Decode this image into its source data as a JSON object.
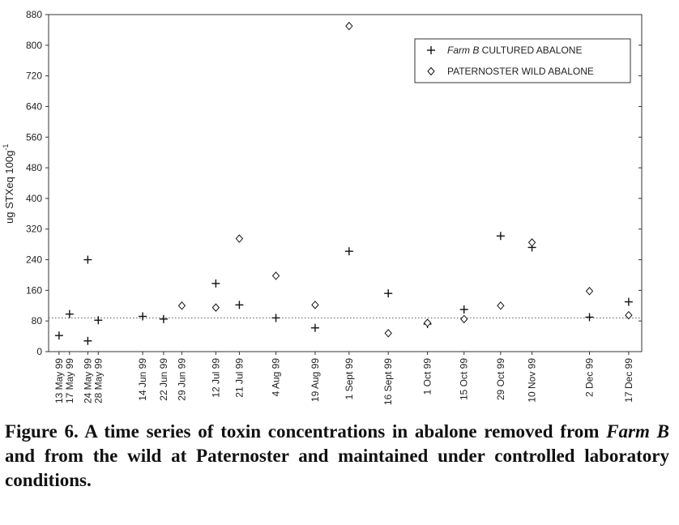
{
  "chart_data": {
    "type": "scatter",
    "ylabel": "ug STXeq 100g",
    "ylabel_superscript": "-1",
    "ylim": [
      0,
      880
    ],
    "yticks": [
      0,
      80,
      160,
      240,
      320,
      400,
      480,
      560,
      640,
      720,
      800,
      880
    ],
    "reference_line": {
      "y": 88,
      "style": "dotted"
    },
    "legend_position": "top-right",
    "series": [
      {
        "name": "CULTURED ABALONE",
        "name_prefix": "Farm B",
        "marker": "plus",
        "points": [
          {
            "x": "13 May 99",
            "y": 42
          },
          {
            "x": "17 May 99",
            "y": 98
          },
          {
            "x": "24 May 99",
            "y": 28
          },
          {
            "x": "24 May 99",
            "y": 240
          },
          {
            "x": "28 May 99",
            "y": 82
          },
          {
            "x": "14 Jun 99",
            "y": 92
          },
          {
            "x": "22 Jun 99",
            "y": 85
          },
          {
            "x": "12 Jul 99",
            "y": 178
          },
          {
            "x": "21 Jul 99",
            "y": 122
          },
          {
            "x": "4 Aug 99",
            "y": 88
          },
          {
            "x": "19 Aug 99",
            "y": 62
          },
          {
            "x": "1 Sept 99",
            "y": 262
          },
          {
            "x": "16 Sept 99",
            "y": 152
          },
          {
            "x": "1 Oct 99",
            "y": 72
          },
          {
            "x": "15 Oct 99",
            "y": 110
          },
          {
            "x": "29 Oct 99",
            "y": 302
          },
          {
            "x": "10 Nov 99",
            "y": 272
          },
          {
            "x": "2 Dec 99",
            "y": 90
          },
          {
            "x": "17 Dec 99",
            "y": 130
          }
        ]
      },
      {
        "name": "PATERNOSTER WILD ABALONE",
        "marker": "diamond",
        "points": [
          {
            "x": "29 Jun 99",
            "y": 120
          },
          {
            "x": "12 Jul 99",
            "y": 115
          },
          {
            "x": "21 Jul 99",
            "y": 295
          },
          {
            "x": "4 Aug 99",
            "y": 198
          },
          {
            "x": "19 Aug 99",
            "y": 122
          },
          {
            "x": "1 Sept 99",
            "y": 850
          },
          {
            "x": "16 Sept 99",
            "y": 48
          },
          {
            "x": "1 Oct 99",
            "y": 75
          },
          {
            "x": "15 Oct 99",
            "y": 85
          },
          {
            "x": "29 Oct 99",
            "y": 120
          },
          {
            "x": "10 Nov 99",
            "y": 285
          },
          {
            "x": "2 Dec 99",
            "y": 158
          },
          {
            "x": "17 Dec 99",
            "y": 95
          }
        ]
      }
    ],
    "date_ticks": [
      {
        "label": "13 May 99",
        "x": "1999-05-13"
      },
      {
        "label": "17 May 99",
        "x": "1999-05-17"
      },
      {
        "label": "24 May 99",
        "x": "1999-05-24"
      },
      {
        "label": "28 May 99",
        "x": "1999-05-28"
      },
      {
        "label": "14 Jun 99",
        "x": "1999-06-14"
      },
      {
        "label": "22 Jun 99",
        "x": "1999-06-22"
      },
      {
        "label": "29 Jun 99",
        "x": "1999-06-29"
      },
      {
        "label": "12 Jul 99",
        "x": "1999-07-12"
      },
      {
        "label": "21 Jul 99",
        "x": "1999-07-21"
      },
      {
        "label": "4 Aug 99",
        "x": "1999-08-04"
      },
      {
        "label": "19 Aug 99",
        "x": "1999-08-19"
      },
      {
        "label": "1 Sept 99",
        "x": "1999-09-01"
      },
      {
        "label": "16 Sept 99",
        "x": "1999-09-16"
      },
      {
        "label": "1 Oct 99",
        "x": "1999-10-01"
      },
      {
        "label": "15 Oct 99",
        "x": "1999-10-15"
      },
      {
        "label": "29 Oct 99",
        "x": "1999-10-29"
      },
      {
        "label": "10 Nov 99",
        "x": "1999-11-10"
      },
      {
        "label": "2 Dec 99",
        "x": "1999-12-02"
      },
      {
        "label": "17 Dec 99",
        "x": "1999-12-17"
      }
    ]
  },
  "caption": {
    "part1": "Figure 6. A time series of toxin concentrations in abalone removed from ",
    "em": "Farm B",
    "part2": " and from the wild at Paternoster and maintained under controlled laboratory conditions."
  },
  "colors": {
    "ink": "#111111",
    "axis": "#333333"
  }
}
